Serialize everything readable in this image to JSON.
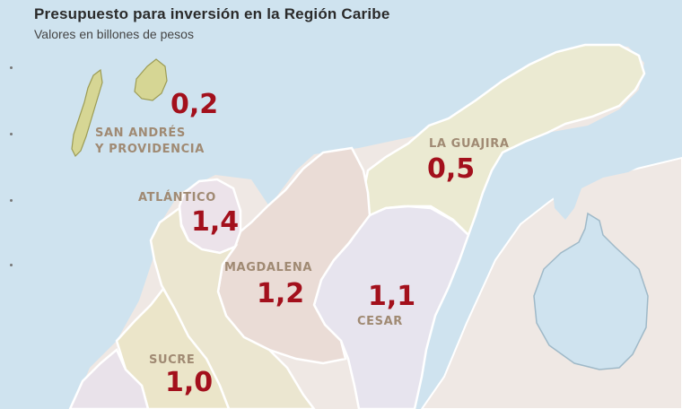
{
  "title": "Presupuesto para inversión en la Región Caribe",
  "subtitle": "Valores en billones de pesos",
  "colors": {
    "sea": "#cfe3ef",
    "land": "#efe8e4",
    "value": "#a3101c",
    "label": "#a08a73",
    "border": "#ffffff"
  },
  "regions": [
    {
      "name": "SAN ANDRÉS\nY PROVIDENCIA",
      "value": "0,2",
      "fill": "#d6d694"
    },
    {
      "name": "LA GUAJIRA",
      "value": "0,5",
      "fill": "#ebead2"
    },
    {
      "name": "ATLÁNTICO",
      "value": "1,4",
      "fill": "#ece3ea"
    },
    {
      "name": "MAGDALENA",
      "value": "1,2",
      "fill": "#eadcd6"
    },
    {
      "name": "CESAR",
      "value": "1,1",
      "fill": "#e7e4ee"
    },
    {
      "name": "SUCRE",
      "value": "1,0",
      "fill": "#ebe5c9"
    }
  ]
}
